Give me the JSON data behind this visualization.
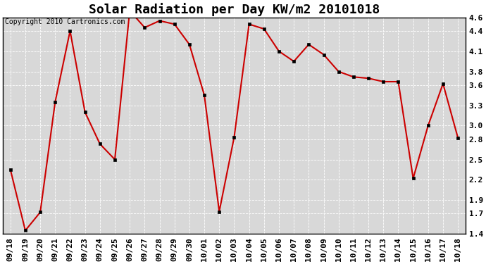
{
  "title": "Solar Radiation per Day KW/m2 20101018",
  "copyright": "Copyright 2010 Cartronics.com",
  "labels": [
    "09/18",
    "09/19",
    "09/20",
    "09/21",
    "09/22",
    "09/23",
    "09/24",
    "09/25",
    "09/26",
    "09/27",
    "09/28",
    "09/29",
    "09/30",
    "10/01",
    "10/02",
    "10/03",
    "10/04",
    "10/05",
    "10/06",
    "10/07",
    "10/08",
    "10/09",
    "10/10",
    "10/11",
    "10/12",
    "10/13",
    "10/14",
    "10/15",
    "10/16",
    "10/17",
    "10/18"
  ],
  "values": [
    2.35,
    1.45,
    1.72,
    3.35,
    4.4,
    3.2,
    2.73,
    2.5,
    4.7,
    4.45,
    4.55,
    4.5,
    4.2,
    3.45,
    1.73,
    2.83,
    4.5,
    4.43,
    4.1,
    3.95,
    4.2,
    4.05,
    3.8,
    3.72,
    3.7,
    3.65,
    3.65,
    2.22,
    3.0,
    3.62,
    2.82
  ],
  "line_color": "#cc0000",
  "marker": "s",
  "marker_size": 2.5,
  "bg_color": "#ffffff",
  "plot_bg_color": "#d8d8d8",
  "grid_color": "#ffffff",
  "ylim": [
    1.4,
    4.6
  ],
  "yticks": [
    1.4,
    1.7,
    1.9,
    2.2,
    2.5,
    2.8,
    3.0,
    3.3,
    3.6,
    3.8,
    4.1,
    4.4,
    4.6
  ],
  "title_fontsize": 13,
  "copyright_fontsize": 7,
  "tick_fontsize": 8
}
